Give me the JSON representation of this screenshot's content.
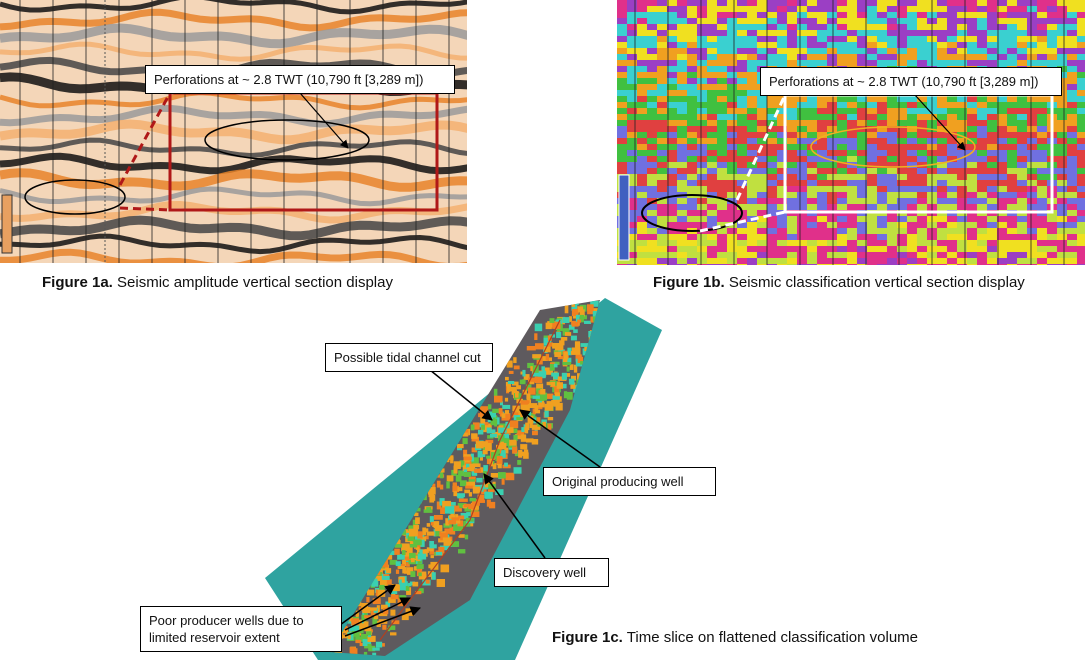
{
  "figure_1a": {
    "label": "Figure 1a.",
    "caption": "Seismic amplitude vertical section display",
    "callout": "Perforations at ~ 2.8 TWT (10,790 ft [3,289 m])"
  },
  "figure_1b": {
    "label": "Figure 1b.",
    "caption": "Seismic classification vertical section display",
    "callout": "Perforations at ~ 2.8 TWT (10,790 ft [3,289 m])"
  },
  "figure_1c": {
    "label": "Figure 1c.",
    "caption": "Time slice on flattened classification volume",
    "callouts": {
      "tidal_channel": "Possible tidal channel cut",
      "original_well": "Original producing well",
      "discovery_well": "Discovery well",
      "poor_producers": [
        "Poor producer wells due to",
        "limited reservoir extent"
      ]
    }
  }
}
